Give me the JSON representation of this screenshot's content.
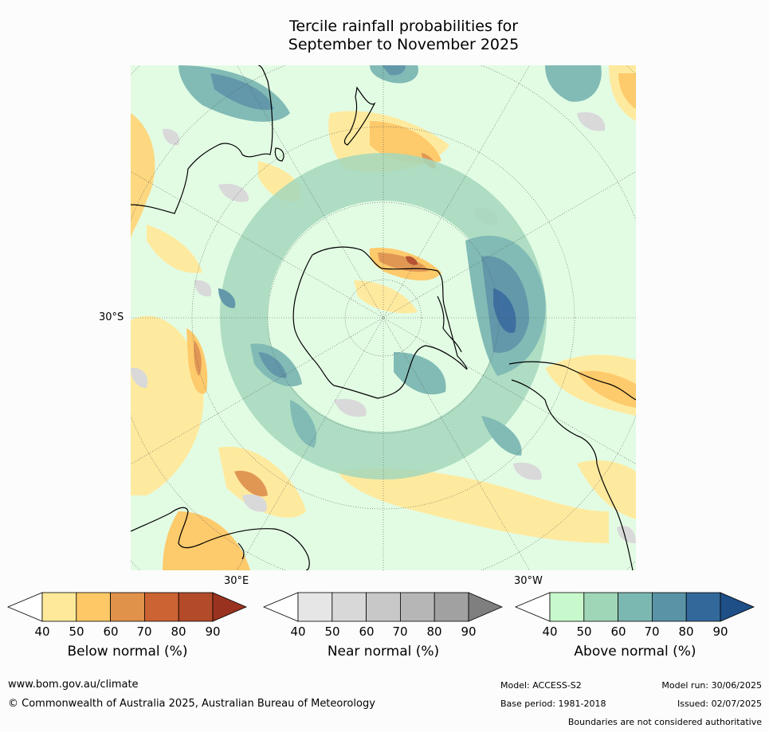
{
  "title": {
    "line1": "Tercile rainfall probabilities for",
    "line2": "September to November 2025"
  },
  "map": {
    "projection": "south-polar stereographic",
    "latitude_label": "30°S",
    "longitude_labels": [
      "30°E",
      "30°W"
    ]
  },
  "colorbars": [
    {
      "label": "Below normal (%)",
      "ticks": [
        "40",
        "50",
        "60",
        "70",
        "80",
        "90"
      ],
      "colors": [
        "#ffffff",
        "#fee99a",
        "#fdc865",
        "#e0924b",
        "#cc6333",
        "#b34a29",
        "#99331f"
      ]
    },
    {
      "label": "Near normal (%)",
      "ticks": [
        "40",
        "50",
        "60",
        "70",
        "80",
        "90"
      ],
      "colors": [
        "#ffffff",
        "#e6e6e6",
        "#d8d8d8",
        "#c8c8c8",
        "#b6b6b6",
        "#a1a1a1",
        "#7f7f7f"
      ]
    },
    {
      "label": "Above normal (%)",
      "ticks": [
        "40",
        "50",
        "60",
        "70",
        "80",
        "90"
      ],
      "colors": [
        "#ffffff",
        "#c8f9cc",
        "#a0d6b8",
        "#7cb8b2",
        "#5a93a6",
        "#33689b",
        "#1f4f87"
      ]
    }
  ],
  "footer": {
    "website": "www.bom.gov.au/climate",
    "copyright": "© Commonwealth of Australia 2025, Australian Bureau of Meteorology",
    "model": "Model: ACCESS-S2",
    "model_run": "Model run: 30/06/2025",
    "base_period": "Base period: 1981-2018",
    "issued": "Issued: 02/07/2025",
    "disclaimer": "Boundaries are not considered authoritative"
  }
}
